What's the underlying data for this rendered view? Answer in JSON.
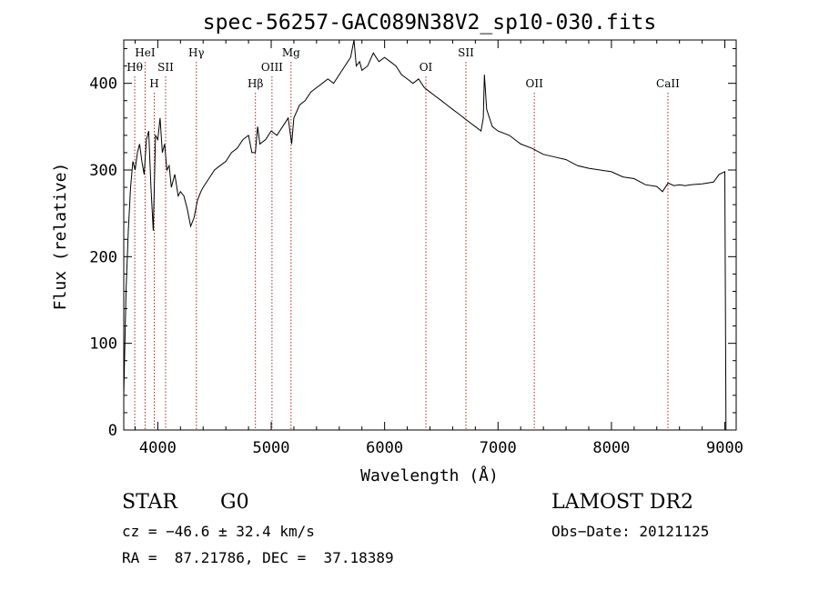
{
  "chart_data": {
    "type": "line",
    "title": "spec-56257-GAC089N38V2_sp10-030.fits",
    "xlabel": "Wavelength (Å)",
    "ylabel": "Flux (relative)",
    "xlim": [
      3700,
      9100
    ],
    "ylim": [
      0,
      450
    ],
    "x_ticks": [
      4000,
      5000,
      6000,
      7000,
      8000,
      9000
    ],
    "y_ticks": [
      0,
      100,
      200,
      300,
      400
    ],
    "grid": false,
    "series": [
      {
        "x": [
          3700,
          3720,
          3740,
          3760,
          3780,
          3800,
          3820,
          3840,
          3860,
          3880,
          3900,
          3920,
          3940,
          3960,
          3980,
          4000,
          4020,
          4040,
          4060,
          4080,
          4100,
          4120,
          4150,
          4180,
          4200,
          4230,
          4260,
          4290,
          4320,
          4350,
          4380,
          4400,
          4450,
          4500,
          4550,
          4600,
          4650,
          4700,
          4750,
          4800,
          4830,
          4860,
          4880,
          4900,
          4950,
          5000,
          5050,
          5100,
          5150,
          5180,
          5200,
          5250,
          5300,
          5350,
          5400,
          5450,
          5500,
          5550,
          5600,
          5650,
          5700,
          5730,
          5750,
          5780,
          5800,
          5850,
          5900,
          5950,
          6000,
          6050,
          6100,
          6150,
          6200,
          6250,
          6300,
          6350,
          6400,
          6450,
          6500,
          6550,
          6600,
          6650,
          6700,
          6750,
          6800,
          6850,
          6870,
          6880,
          6900,
          6950,
          7000,
          7100,
          7200,
          7300,
          7400,
          7500,
          7600,
          7700,
          7800,
          7900,
          8000,
          8100,
          8200,
          8300,
          8400,
          8450,
          8500,
          8550,
          8600,
          8650,
          8700,
          8800,
          8900,
          8950,
          9000,
          9010
        ],
        "y": [
          40,
          160,
          230,
          280,
          310,
          300,
          320,
          330,
          310,
          295,
          335,
          345,
          280,
          230,
          340,
          335,
          360,
          320,
          330,
          300,
          305,
          280,
          295,
          270,
          275,
          270,
          255,
          235,
          245,
          265,
          275,
          280,
          290,
          300,
          305,
          310,
          320,
          325,
          335,
          340,
          320,
          320,
          350,
          330,
          335,
          345,
          340,
          350,
          360,
          330,
          360,
          375,
          380,
          390,
          395,
          400,
          405,
          400,
          410,
          420,
          430,
          450,
          420,
          425,
          415,
          420,
          435,
          425,
          430,
          425,
          420,
          410,
          405,
          400,
          405,
          395,
          390,
          385,
          380,
          375,
          370,
          365,
          360,
          355,
          350,
          345,
          360,
          410,
          370,
          350,
          345,
          340,
          330,
          325,
          318,
          315,
          312,
          305,
          302,
          300,
          298,
          292,
          290,
          283,
          281,
          275,
          285,
          282,
          283,
          282,
          283,
          284,
          286,
          295,
          298,
          0
        ]
      }
    ],
    "line_markers": [
      {
        "label": "HeI",
        "x": 3888,
        "tier": 1
      },
      {
        "label": "Hθ",
        "x": 3797,
        "tier": 2
      },
      {
        "label": "SII",
        "x": 4069,
        "tier": 2
      },
      {
        "label": "H",
        "x": 3969,
        "tier": 3
      },
      {
        "label": "Hγ",
        "x": 4340,
        "tier": 1
      },
      {
        "label": "Hβ",
        "x": 4861,
        "tier": 3
      },
      {
        "label": "OIII",
        "x": 5007,
        "tier": 2
      },
      {
        "label": "Mg",
        "x": 5175,
        "tier": 1
      },
      {
        "label": "OI",
        "x": 6364,
        "tier": 2
      },
      {
        "label": "SII",
        "x": 6717,
        "tier": 1
      },
      {
        "label": "OII",
        "x": 7320,
        "tier": 3
      },
      {
        "label": "CaII",
        "x": 8498,
        "tier": 3
      }
    ]
  },
  "info": {
    "class_label": "STAR",
    "subclass": "G0",
    "survey": "LAMOST DR2",
    "redshift_text": "cz = −46.6 ± 32.4 km/s",
    "obs_date": "Obs−Date: 20121125",
    "coords_text": "RA =  87.21786, DEC =  37.18389"
  }
}
